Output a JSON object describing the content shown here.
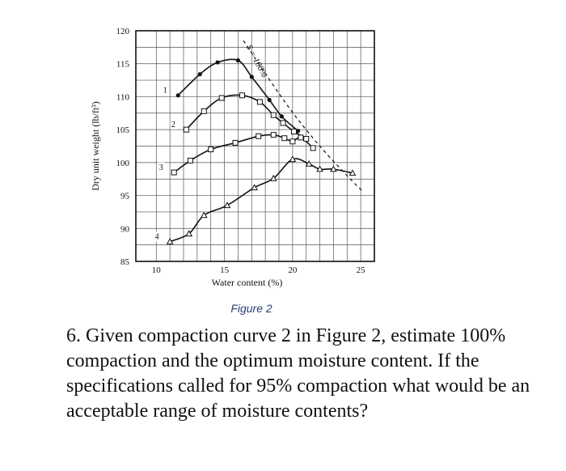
{
  "chart_data": {
    "type": "line",
    "xlabel": "Water content (%)",
    "ylabel": "Dry unit weight (lb/ft³)",
    "xlim": [
      8.5,
      26
    ],
    "ylim": [
      85,
      120
    ],
    "x_ticks": [
      10,
      15,
      20,
      25
    ],
    "y_ticks": [
      85,
      90,
      95,
      100,
      105,
      110,
      115,
      120
    ],
    "grid": true,
    "series": [
      {
        "name": "1",
        "marker": "dot",
        "x": [
          11.6,
          13.2,
          14.5,
          16.0,
          17.0,
          18.3,
          19.2,
          20.4
        ],
        "y": [
          110.2,
          113.4,
          115.2,
          115.5,
          113.0,
          109.5,
          107.0,
          104.8
        ]
      },
      {
        "name": "2",
        "marker": "square",
        "x": [
          12.2,
          13.5,
          14.8,
          16.3,
          17.6,
          18.6,
          19.3,
          20.1,
          21.0
        ],
        "y": [
          105.0,
          107.8,
          109.8,
          110.2,
          109.2,
          107.2,
          106.0,
          104.7,
          103.6
        ]
      },
      {
        "name": "3",
        "marker": "square",
        "x": [
          11.3,
          12.5,
          14.0,
          15.8,
          17.5,
          18.6,
          19.4,
          20.0,
          20.6,
          21.5
        ],
        "y": [
          98.5,
          100.3,
          102.0,
          103.0,
          104.0,
          104.2,
          103.7,
          103.2,
          103.8,
          102.2
        ]
      },
      {
        "name": "4",
        "marker": "triangle",
        "x": [
          11.0,
          12.4,
          13.5,
          15.2,
          17.2,
          18.6,
          20.0,
          21.2,
          22.0,
          23.0,
          24.4
        ],
        "y": [
          88.0,
          89.2,
          92.0,
          93.5,
          96.2,
          97.6,
          100.5,
          99.8,
          99.0,
          99.0,
          98.4
        ]
      }
    ],
    "zav_line": {
      "label": "S = 100%",
      "x": [
        16.4,
        18.0,
        20.0,
        22.0,
        24.0,
        25.2
      ],
      "y": [
        118.5,
        113.5,
        107.6,
        102.5,
        98.0,
        95.5
      ]
    }
  },
  "caption": "Figure 2",
  "question": "6. Given compaction curve 2 in Figure 2, estimate 100% compaction and the optimum moisture content. If the specifications called for 95% compaction what would be an acceptable range of moisture contents?"
}
